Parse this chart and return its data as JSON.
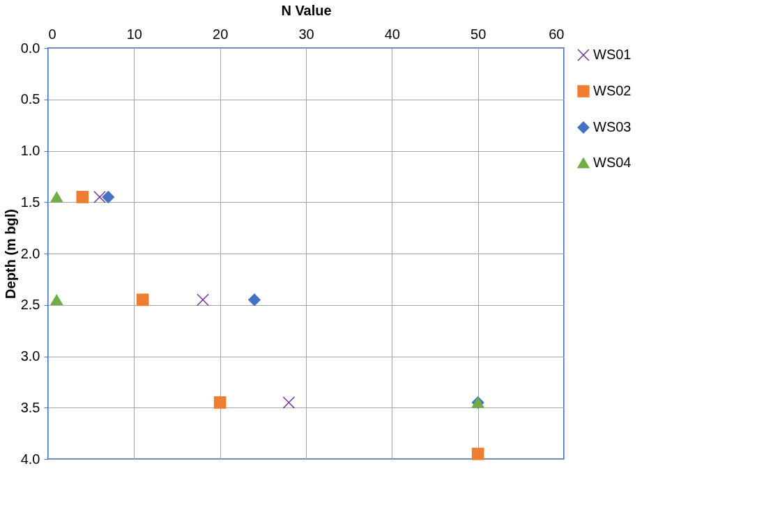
{
  "chart_data": {
    "type": "scatter",
    "xlabel": "N Value",
    "ylabel": "Depth (m bgl)",
    "xlim": [
      0,
      60
    ],
    "xticks": [
      0,
      10,
      20,
      30,
      40,
      50,
      60
    ],
    "ylim": [
      4.0,
      0.0
    ],
    "yticks": [
      {
        "value": 0,
        "label": "0.0"
      },
      {
        "value": 0.5,
        "label": "0.5"
      },
      {
        "value": 1,
        "label": "1.0"
      },
      {
        "value": 1.5,
        "label": "1.5"
      },
      {
        "value": 2,
        "label": "2.0"
      },
      {
        "value": 2.5,
        "label": "2.5"
      },
      {
        "value": 3,
        "label": "3.0"
      },
      {
        "value": 3.5,
        "label": "3.5"
      },
      {
        "value": 4,
        "label": "4.0"
      }
    ],
    "grid": true,
    "legend": "right",
    "series": [
      {
        "name": "WS01",
        "color": "#7030a0",
        "marker": "cross",
        "x": [
          6,
          18,
          28
        ],
        "values": [
          1.45,
          2.45,
          3.45
        ]
      },
      {
        "name": "WS02",
        "color": "#ed7d31",
        "marker": "square",
        "x": [
          4,
          11,
          20,
          50
        ],
        "values": [
          1.45,
          2.45,
          3.45,
          3.95
        ]
      },
      {
        "name": "WS03",
        "color": "#4472c4",
        "marker": "diamond",
        "x": [
          7,
          24,
          50
        ],
        "values": [
          1.45,
          2.45,
          3.45
        ]
      },
      {
        "name": "WS04",
        "color": "#70ad47",
        "marker": "triangle",
        "x": [
          1,
          1,
          50
        ],
        "values": [
          1.45,
          2.45,
          3.45
        ]
      }
    ]
  }
}
